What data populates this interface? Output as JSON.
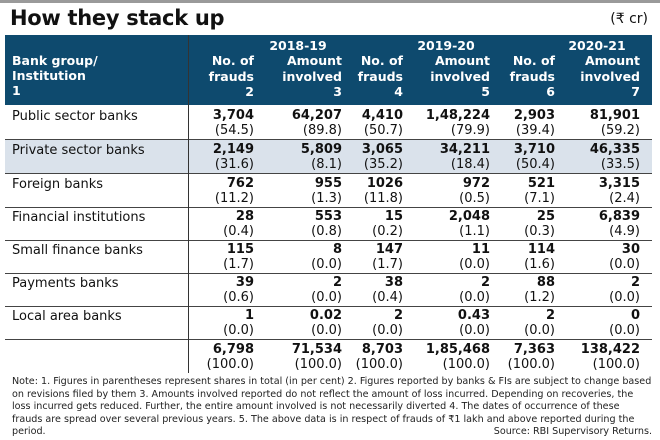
{
  "title": "How they stack up",
  "unit": "(₹ cr)",
  "header": {
    "row_label_lines": [
      "Bank group/",
      "Institution",
      "1"
    ],
    "years": [
      "2018-19",
      "2019-20",
      "2020-21"
    ],
    "columns": [
      {
        "l1": "No. of",
        "l2": "frauds",
        "n": "2"
      },
      {
        "l1": "Amount",
        "l2": "involved",
        "n": "3"
      },
      {
        "l1": "No. of",
        "l2": "frauds",
        "n": "4"
      },
      {
        "l1": "Amount",
        "l2": "involved",
        "n": "5"
      },
      {
        "l1": "No. of",
        "l2": "frauds",
        "n": "6"
      },
      {
        "l1": "Amount",
        "l2": "involved",
        "n": "7"
      }
    ]
  },
  "rows": [
    {
      "name": "Public sector banks",
      "cells": [
        [
          "3,704",
          "(54.5)"
        ],
        [
          "64,207",
          "(89.8)"
        ],
        [
          "4,410",
          "(50.7)"
        ],
        [
          "1,48,224",
          "(79.9)"
        ],
        [
          "2,903",
          "(39.4)"
        ],
        [
          "81,901",
          "(59.2)"
        ]
      ]
    },
    {
      "name": "Private sector banks",
      "cells": [
        [
          "2,149",
          "(31.6)"
        ],
        [
          "5,809",
          "(8.1)"
        ],
        [
          "3,065",
          "(35.2)"
        ],
        [
          "34,211",
          "(18.4)"
        ],
        [
          "3,710",
          "(50.4)"
        ],
        [
          "46,335",
          "(33.5)"
        ]
      ]
    },
    {
      "name": "Foreign banks",
      "cells": [
        [
          "762",
          "(11.2)"
        ],
        [
          "955",
          "(1.3)"
        ],
        [
          "1026",
          "(11.8)"
        ],
        [
          "972",
          "(0.5)"
        ],
        [
          "521",
          "(7.1)"
        ],
        [
          "3,315",
          "(2.4)"
        ]
      ]
    },
    {
      "name": "Financial institutions",
      "cells": [
        [
          "28",
          "(0.4)"
        ],
        [
          "553",
          "(0.8)"
        ],
        [
          "15",
          "(0.2)"
        ],
        [
          "2,048",
          "(1.1)"
        ],
        [
          "25",
          "(0.3)"
        ],
        [
          "6,839",
          "(4.9)"
        ]
      ]
    },
    {
      "name": "Small finance banks",
      "cells": [
        [
          "115",
          "(1.7)"
        ],
        [
          "8",
          "(0.0)"
        ],
        [
          "147",
          "(1.7)"
        ],
        [
          "11",
          "(0.0)"
        ],
        [
          "114",
          "(1.6)"
        ],
        [
          "30",
          "(0.0)"
        ]
      ]
    },
    {
      "name": "Payments banks",
      "cells": [
        [
          "39",
          "(0.6)"
        ],
        [
          "2",
          "(0.0)"
        ],
        [
          "38",
          "(0.4)"
        ],
        [
          "2",
          "(0.0)"
        ],
        [
          "88",
          "(1.2)"
        ],
        [
          "2",
          "(0.0)"
        ]
      ]
    },
    {
      "name": "Local area banks",
      "cells": [
        [
          "1",
          "(0.0)"
        ],
        [
          "0.02",
          "(0.0)"
        ],
        [
          "2",
          "(0.0)"
        ],
        [
          "0.43",
          "(0.0)"
        ],
        [
          "2",
          "(0.0)"
        ],
        [
          "0",
          "(0.0)"
        ]
      ]
    },
    {
      "name": "",
      "cells": [
        [
          "6,798",
          "(100.0)"
        ],
        [
          "71,534",
          "(100.0)"
        ],
        [
          "8,703",
          "(100.0)"
        ],
        [
          "1,85,468",
          "(100.0)"
        ],
        [
          "7,363",
          "(100.0)"
        ],
        [
          "138,422",
          "(100.0)"
        ]
      ]
    }
  ],
  "note": "Note: 1. Figures in parentheses represent shares in total (in per cent) 2. Figures reported by banks & FIs are subject to change based on revisions filed by them  3. Amounts involved reported do not reflect the amount of loss incurred. Depending on recoveries, the loss incurred gets reduced. Further, the entire amount involved is not necessarily diverted 4. The dates of occurrence of these frauds are spread over several previous years. 5. The above data is in respect of frauds of ₹1 lakh and above reported during the period.",
  "source": "Source: RBI Supervisory Returns.",
  "colors": {
    "header_bg": "#0e4a6e",
    "shade_row": "#dae2eb"
  }
}
